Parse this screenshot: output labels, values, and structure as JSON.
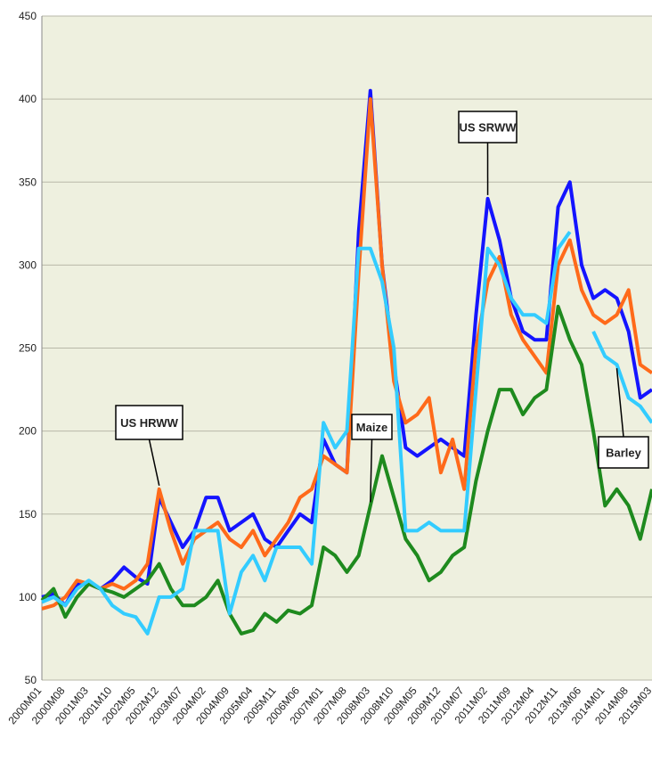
{
  "chart_data": {
    "type": "line",
    "categories": [
      "2000M01",
      null,
      "2000M08",
      null,
      "2001M03",
      null,
      "2001M10",
      null,
      "2002M05",
      null,
      "2002M12",
      null,
      "2003M07",
      null,
      "2004M02",
      null,
      "2004M09",
      null,
      "2005M04",
      null,
      "2005M11",
      null,
      "2006M06",
      null,
      "2007M01",
      null,
      "2007M08",
      null,
      "2008M03",
      null,
      "2008M10",
      null,
      "2009M05",
      null,
      "2009M12",
      null,
      "2010M07",
      null,
      "2011M02",
      null,
      "2011M09",
      null,
      "2012M04",
      null,
      "2012M11",
      null,
      "2013M06",
      null,
      "2014M01",
      null,
      "2014M08",
      null,
      "2015M03"
    ],
    "series": [
      {
        "name": "US SRWW",
        "color": "#1414ff",
        "values": [
          100,
          102,
          95,
          108,
          108,
          105,
          110,
          118,
          112,
          108,
          160,
          145,
          130,
          140,
          160,
          160,
          140,
          145,
          150,
          135,
          130,
          140,
          150,
          145,
          195,
          180,
          175,
          320,
          405,
          300,
          240,
          190,
          185,
          190,
          195,
          190,
          185,
          270,
          340,
          315,
          280,
          260,
          255,
          255,
          335,
          350,
          300,
          280,
          285,
          280,
          260,
          220,
          225
        ]
      },
      {
        "name": "US HRWW",
        "color": "#ff6a1a",
        "values": [
          93,
          95,
          100,
          110,
          108,
          105,
          108,
          105,
          110,
          120,
          165,
          140,
          120,
          135,
          140,
          145,
          135,
          130,
          140,
          125,
          135,
          145,
          160,
          165,
          185,
          180,
          175,
          295,
          400,
          300,
          230,
          205,
          210,
          220,
          175,
          195,
          165,
          250,
          290,
          305,
          270,
          255,
          245,
          235,
          300,
          315,
          285,
          270,
          265,
          270,
          285,
          240,
          235
        ]
      },
      {
        "name": "Maize",
        "color": "#1e8a1e",
        "values": [
          98,
          105,
          88,
          100,
          108,
          105,
          103,
          100,
          105,
          110,
          120,
          105,
          95,
          95,
          100,
          110,
          90,
          78,
          80,
          90,
          85,
          92,
          90,
          95,
          130,
          125,
          115,
          125,
          155,
          185,
          160,
          135,
          125,
          110,
          115,
          125,
          130,
          170,
          200,
          225,
          225,
          210,
          220,
          225,
          275,
          255,
          240,
          200,
          155,
          165,
          155,
          135,
          165
        ]
      },
      {
        "name": "Barley",
        "color": "#33ccff",
        "values": [
          97,
          100,
          95,
          105,
          110,
          105,
          95,
          90,
          88,
          78,
          100,
          100,
          105,
          140,
          140,
          140,
          90,
          115,
          125,
          110,
          130,
          130,
          130,
          120,
          205,
          190,
          200,
          310,
          310,
          290,
          250,
          140,
          140,
          145,
          140,
          140,
          140,
          225,
          310,
          300,
          280,
          270,
          270,
          265,
          310,
          320,
          null,
          260,
          245,
          240,
          220,
          215,
          205
        ]
      }
    ],
    "ylim": [
      50,
      450
    ],
    "yticks": [
      50,
      100,
      150,
      200,
      250,
      300,
      350,
      400,
      450
    ],
    "grid": true
  }
}
